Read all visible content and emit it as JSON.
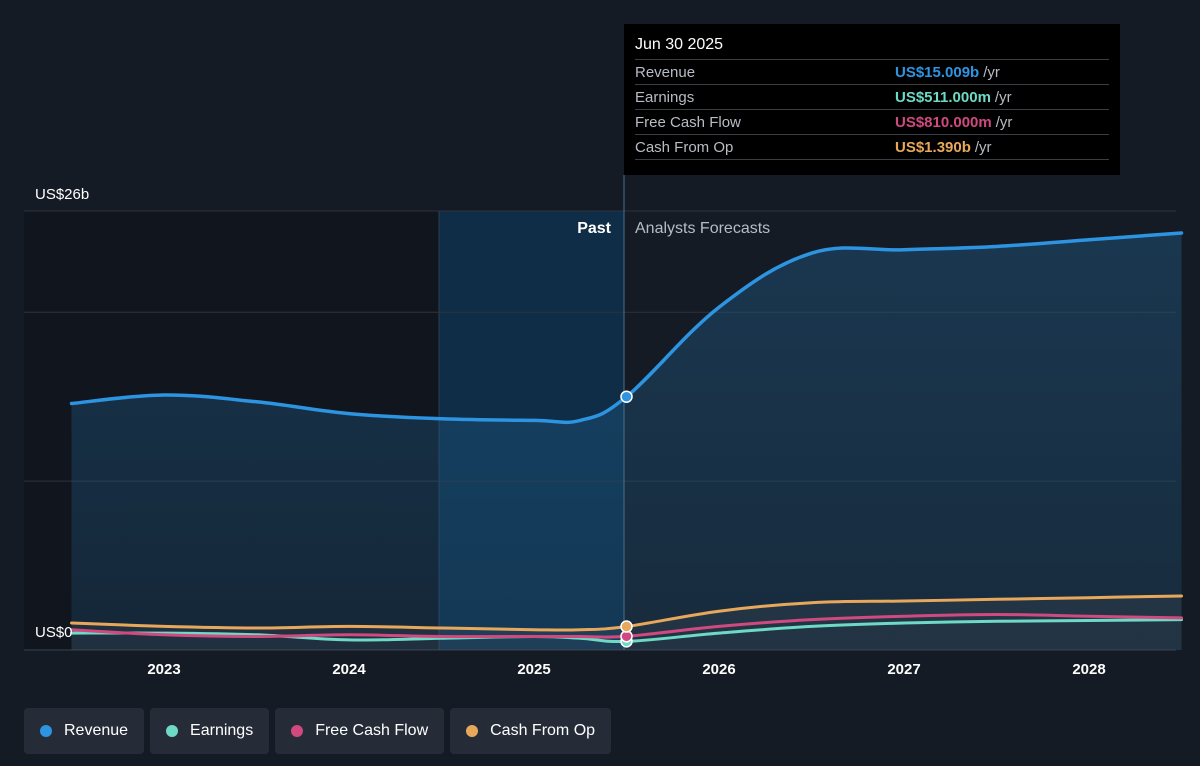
{
  "chart_data": {
    "type": "line",
    "y_top_label": "US$26b",
    "y_bottom_label": "US$0",
    "ylim": [
      0,
      26
    ],
    "x_ticks": [
      "2023",
      "2024",
      "2025",
      "2026",
      "2027",
      "2028"
    ],
    "past_label": "Past",
    "forecast_label": "Analysts Forecasts",
    "past_divider_date": "2025-06-30",
    "series": [
      {
        "name": "Revenue",
        "color": "#2d94e2",
        "points": [
          [
            2022.5,
            14.6
          ],
          [
            2023.0,
            15.1
          ],
          [
            2023.5,
            14.7
          ],
          [
            2024.0,
            14.0
          ],
          [
            2024.5,
            13.7
          ],
          [
            2025.0,
            13.6
          ],
          [
            2025.25,
            13.6
          ],
          [
            2025.5,
            15.0
          ],
          [
            2026.0,
            20.3
          ],
          [
            2026.5,
            23.5
          ],
          [
            2027.0,
            23.7
          ],
          [
            2027.5,
            23.9
          ],
          [
            2028.0,
            24.3
          ],
          [
            2028.5,
            24.7
          ]
        ]
      },
      {
        "name": "Earnings",
        "color": "#6ed9c5",
        "points": [
          [
            2022.5,
            1.0
          ],
          [
            2023.0,
            1.0
          ],
          [
            2023.5,
            0.9
          ],
          [
            2024.0,
            0.6
          ],
          [
            2024.5,
            0.7
          ],
          [
            2025.0,
            0.8
          ],
          [
            2025.25,
            0.7
          ],
          [
            2025.5,
            0.51
          ],
          [
            2026.0,
            1.0
          ],
          [
            2026.5,
            1.4
          ],
          [
            2027.0,
            1.6
          ],
          [
            2027.5,
            1.7
          ],
          [
            2028.0,
            1.75
          ],
          [
            2028.5,
            1.8
          ]
        ]
      },
      {
        "name": "Free Cash Flow",
        "color": "#d0497f",
        "points": [
          [
            2022.5,
            1.2
          ],
          [
            2023.0,
            0.9
          ],
          [
            2023.5,
            0.8
          ],
          [
            2024.0,
            0.9
          ],
          [
            2024.5,
            0.8
          ],
          [
            2025.0,
            0.8
          ],
          [
            2025.25,
            0.8
          ],
          [
            2025.5,
            0.81
          ],
          [
            2026.0,
            1.4
          ],
          [
            2026.5,
            1.8
          ],
          [
            2027.0,
            2.0
          ],
          [
            2027.5,
            2.1
          ],
          [
            2028.0,
            2.0
          ],
          [
            2028.5,
            1.9
          ]
        ]
      },
      {
        "name": "Cash From Op",
        "color": "#e8a85b",
        "points": [
          [
            2022.5,
            1.6
          ],
          [
            2023.0,
            1.4
          ],
          [
            2023.5,
            1.3
          ],
          [
            2024.0,
            1.4
          ],
          [
            2024.5,
            1.3
          ],
          [
            2025.0,
            1.2
          ],
          [
            2025.25,
            1.2
          ],
          [
            2025.5,
            1.39
          ],
          [
            2026.0,
            2.3
          ],
          [
            2026.5,
            2.8
          ],
          [
            2027.0,
            2.9
          ],
          [
            2027.5,
            3.0
          ],
          [
            2028.0,
            3.1
          ],
          [
            2028.5,
            3.2
          ]
        ]
      }
    ]
  },
  "tooltip": {
    "date": "Jun 30 2025",
    "rows": [
      {
        "label": "Revenue",
        "value": "US$15.009b",
        "unit": "/yr",
        "color": "#2d94e2"
      },
      {
        "label": "Earnings",
        "value": "US$511.000m",
        "unit": "/yr",
        "color": "#6ed9c5"
      },
      {
        "label": "Free Cash Flow",
        "value": "US$810.000m",
        "unit": "/yr",
        "color": "#d0497f"
      },
      {
        "label": "Cash From Op",
        "value": "US$1.390b",
        "unit": "/yr",
        "color": "#e8a85b"
      }
    ]
  },
  "legend": [
    {
      "label": "Revenue",
      "color": "#2d94e2"
    },
    {
      "label": "Earnings",
      "color": "#6ed9c5"
    },
    {
      "label": "Free Cash Flow",
      "color": "#d0497f"
    },
    {
      "label": "Cash From Op",
      "color": "#e8a85b"
    }
  ]
}
